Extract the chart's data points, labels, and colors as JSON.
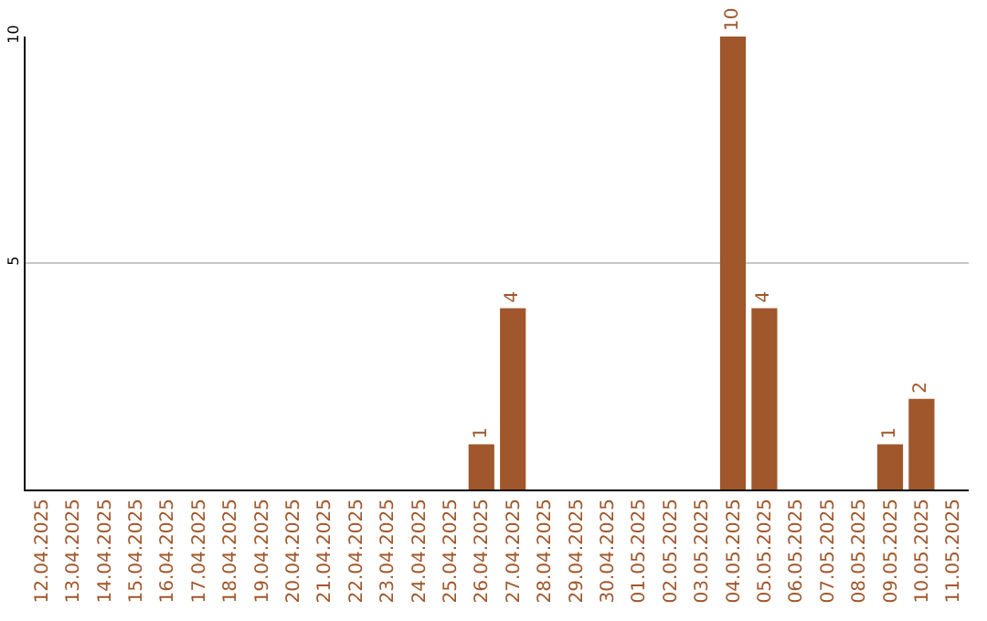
{
  "chart_data": {
    "type": "bar",
    "categories": [
      "12.04.2025",
      "13.04.2025",
      "14.04.2025",
      "15.04.2025",
      "16.04.2025",
      "17.04.2025",
      "18.04.2025",
      "19.04.2025",
      "20.04.2025",
      "21.04.2025",
      "22.04.2025",
      "23.04.2025",
      "24.04.2025",
      "25.04.2025",
      "26.04.2025",
      "27.04.2025",
      "28.04.2025",
      "29.04.2025",
      "30.04.2025",
      "01.05.2025",
      "02.05.2025",
      "03.05.2025",
      "04.05.2025",
      "05.05.2025",
      "06.05.2025",
      "07.05.2025",
      "08.05.2025",
      "09.05.2025",
      "10.05.2025",
      "11.05.2025"
    ],
    "values": [
      0,
      0,
      0,
      0,
      0,
      0,
      0,
      0,
      0,
      0,
      0,
      0,
      0,
      0,
      1,
      4,
      0,
      0,
      0,
      0,
      0,
      0,
      10,
      4,
      0,
      0,
      0,
      1,
      2,
      0
    ],
    "value_labels": [
      null,
      null,
      null,
      null,
      null,
      null,
      null,
      null,
      null,
      null,
      null,
      null,
      null,
      null,
      "1",
      "4",
      null,
      null,
      null,
      null,
      null,
      null,
      "10",
      "4",
      null,
      null,
      null,
      "1",
      "2",
      null
    ],
    "color": "#a0572b",
    "ylim": [
      0,
      10
    ],
    "yticks": [
      5,
      10
    ],
    "grid": "y"
  }
}
